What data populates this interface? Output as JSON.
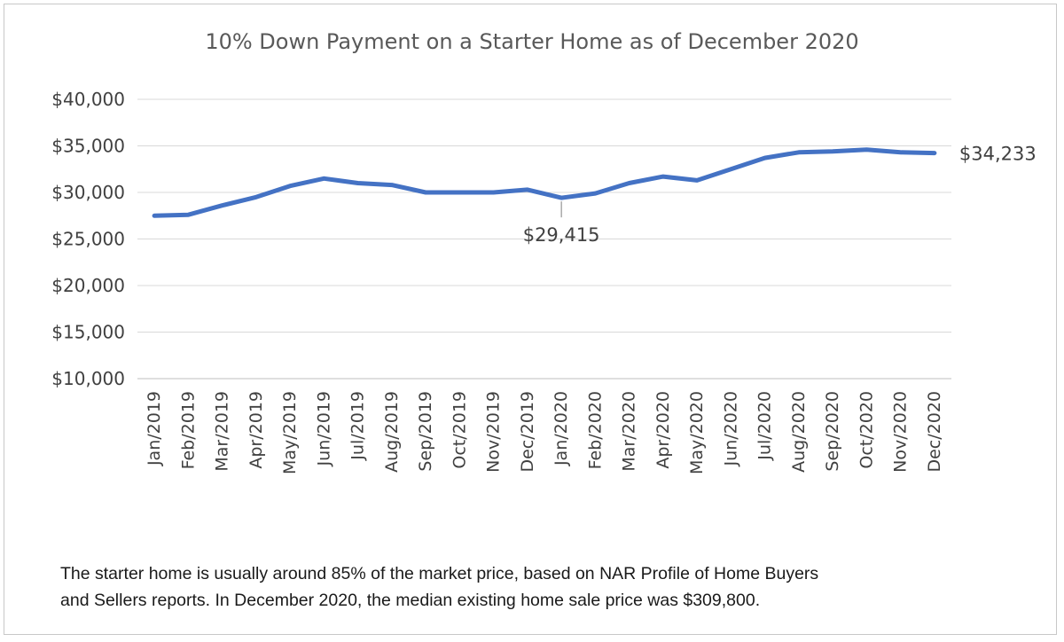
{
  "chart_data": {
    "type": "line",
    "title": "10% Down Payment on a Starter Home as of December 2020",
    "xlabel": "",
    "ylabel": "",
    "ylim": [
      10000,
      40000
    ],
    "yticks": [
      10000,
      15000,
      20000,
      25000,
      30000,
      35000,
      40000
    ],
    "ytick_labels": [
      "$10,000",
      "$15,000",
      "$20,000",
      "$25,000",
      "$30,000",
      "$35,000",
      "$40,000"
    ],
    "grid": true,
    "categories": [
      "Jan/2019",
      "Feb/2019",
      "Mar/2019",
      "Apr/2019",
      "May/2019",
      "Jun/2019",
      "Jul/2019",
      "Aug/2019",
      "Sep/2019",
      "Oct/2019",
      "Nov/2019",
      "Dec/2019",
      "Jan/2020",
      "Feb/2020",
      "Mar/2020",
      "Apr/2020",
      "May/2020",
      "Jun/2020",
      "Jul/2020",
      "Aug/2020",
      "Sep/2020",
      "Oct/2020",
      "Nov/2020",
      "Dec/2020"
    ],
    "series": [
      {
        "name": "10% Down Payment",
        "color": "#4472c4",
        "values": [
          27500,
          27600,
          28600,
          29500,
          30700,
          31500,
          31000,
          30800,
          30000,
          30000,
          30000,
          30300,
          29415,
          29900,
          31000,
          31700,
          31300,
          32500,
          33700,
          34300,
          34400,
          34600,
          34300,
          34233
        ]
      }
    ],
    "annotations": [
      {
        "label": "$29,415",
        "category": "Jan/2020",
        "value": 29415,
        "position": "below"
      },
      {
        "label": "$34,233",
        "category": "Dec/2020",
        "value": 34233,
        "position": "right"
      }
    ]
  },
  "footnote": {
    "line1": "The starter home is usually around 85% of the market price, based on NAR Profile of Home Buyers",
    "line2": "and Sellers reports. In December 2020, the median existing home sale price was $309,800."
  }
}
